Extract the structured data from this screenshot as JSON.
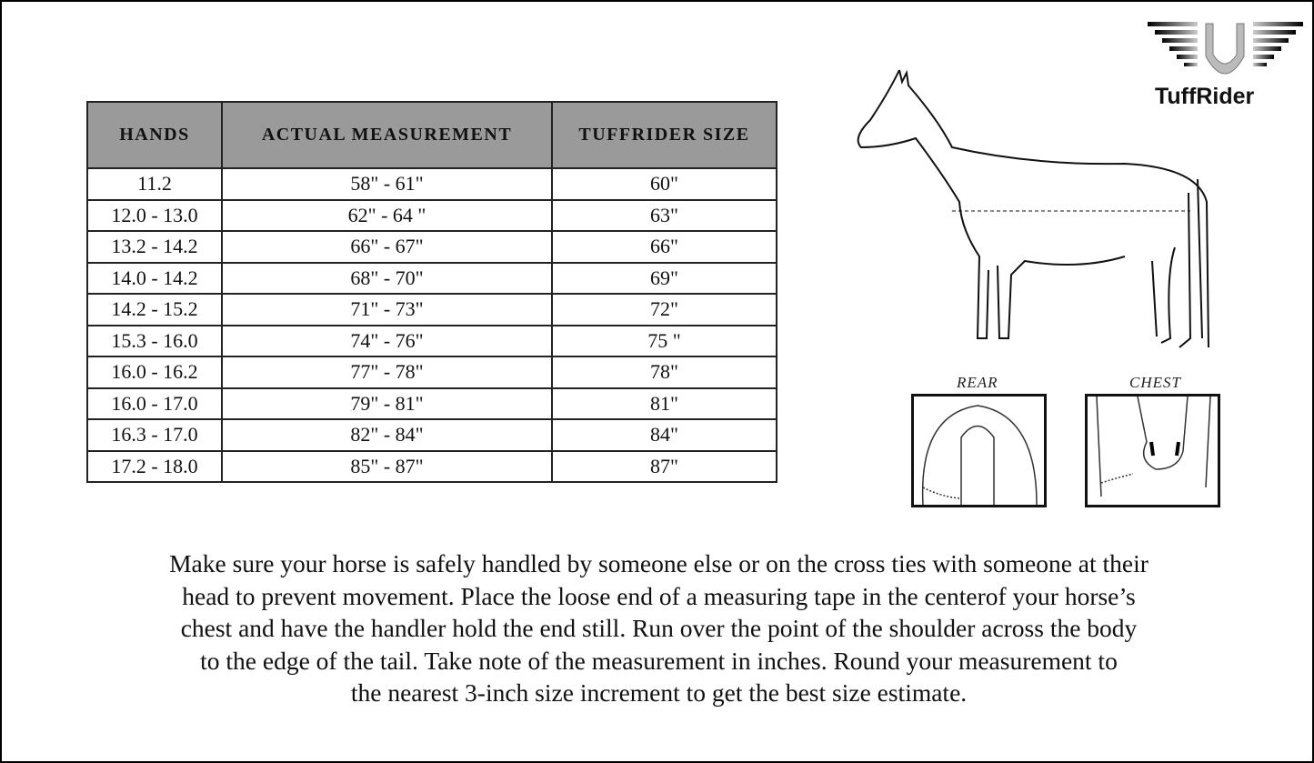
{
  "logo": {
    "text": "TuffRider"
  },
  "table": {
    "headers": [
      "HANDS",
      "ACTUAL MEASUREMENT",
      "TUFFRIDER SIZE"
    ],
    "rows": [
      [
        "11.2",
        "58\" - 61\"",
        "60\""
      ],
      [
        "12.0 - 13.0",
        "62\" - 64 \"",
        "63\""
      ],
      [
        "13.2 - 14.2",
        "66\" - 67\"",
        "66\""
      ],
      [
        "14.0 - 14.2",
        "68\" - 70\"",
        "69\""
      ],
      [
        "14.2 - 15.2",
        "71\" - 73\"",
        "72\""
      ],
      [
        "15.3 - 16.0",
        "74\" - 76\"",
        "75 \""
      ],
      [
        "16.0 - 16.2",
        "77\" - 78\"",
        "78\""
      ],
      [
        "16.0 - 17.0",
        "79\" - 81\"",
        "81\""
      ],
      [
        "16.3 - 17.0",
        "82\" - 84\"",
        "84\""
      ],
      [
        "17.2 - 18.0",
        "85\" - 87\"",
        "87\""
      ]
    ],
    "header_bg": "#9a9a9a"
  },
  "diagram": {
    "rear_label": "REAR",
    "chest_label": "CHEST"
  },
  "instructions": {
    "lines": [
      "Make sure your horse is safely handled by someone else or on the cross ties with someone at their",
      "head to prevent movement. Place the loose end of a measuring tape in the centerof your horse’s",
      "chest and have the handler hold the end still. Run over the point of the shoulder across the body",
      "to the edge of the tail. Take note of the measurement in inches. Round your measurement to",
      "the nearest 3-inch size increment to get the best size estimate."
    ]
  }
}
